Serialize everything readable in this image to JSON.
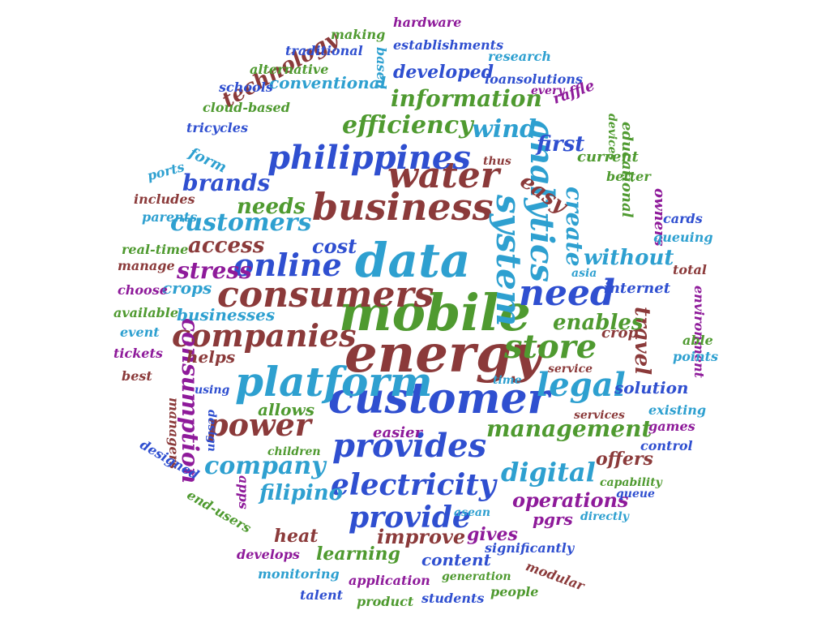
{
  "words": [
    "mobile",
    "energy",
    "data",
    "customer",
    "platform",
    "consumers",
    "business",
    "system",
    "analytics",
    "water",
    "philippines",
    "online",
    "provides",
    "electricity",
    "need",
    "companies",
    "store",
    "legal",
    "power",
    "provide",
    "create",
    "company",
    "digital",
    "management",
    "customers",
    "information",
    "efficiency",
    "wind",
    "travel",
    "stress",
    "consumption",
    "brands",
    "needs",
    "technology",
    "developed",
    "conventional",
    "access",
    "cost",
    "enables",
    "without",
    "first",
    "easy",
    "filipino",
    "improve",
    "operations",
    "learning",
    "content",
    "gives",
    "heat",
    "allows",
    "easier",
    "solution",
    "internet",
    "crops",
    "businesses",
    "helps",
    "educational",
    "owners",
    "offers",
    "pgrs",
    "hardware",
    "making",
    "establishments",
    "traditional",
    "based",
    "research",
    "alternative",
    "loansolutions",
    "schools",
    "every",
    "cloud-based",
    "raffle",
    "tricycles",
    "devices",
    "form",
    "current",
    "ports",
    "thus",
    "better",
    "includes",
    "parents",
    "cards",
    "real-time",
    "queuing",
    "manage",
    "total",
    "choose",
    "asia",
    "available",
    "environment",
    "event",
    "crop",
    "able",
    "tickets",
    "points",
    "best",
    "using",
    "time",
    "service",
    "managers",
    "design",
    "existing",
    "services",
    "games",
    "designed",
    "children",
    "control",
    "capability",
    "apps",
    "queue",
    "end-users",
    "directly",
    "asean",
    "significantly",
    "develops",
    "modular",
    "monitoring",
    "generation",
    "application",
    "people",
    "talent",
    "product",
    "students"
  ],
  "palette": [
    "#2f4fd0",
    "#8b3a3a",
    "#4f9a30",
    "#2ea0d0",
    "#8e1a9a"
  ]
}
